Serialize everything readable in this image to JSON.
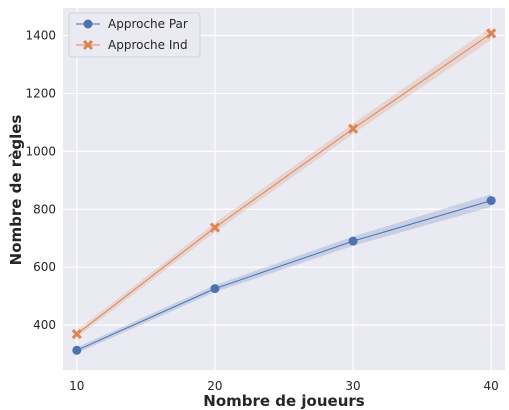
{
  "chart_data": {
    "type": "line",
    "title": "",
    "xlabel": "Nombre de joueurs",
    "ylabel": "Nombre de règles",
    "x": [
      10,
      20,
      30,
      40
    ],
    "x_ticks": [
      10,
      20,
      30,
      40
    ],
    "y_ticks": [
      400,
      600,
      800,
      1000,
      1200,
      1400
    ],
    "xlim": [
      9,
      41
    ],
    "ylim": [
      245,
      1495
    ],
    "grid": true,
    "legend_position": "top-left",
    "series": [
      {
        "name": "Approche Par",
        "color": "#4c72b0",
        "marker": "circle",
        "values": [
          313,
          526,
          690,
          830
        ],
        "ci_low": [
          303,
          514,
          674,
          808
        ],
        "ci_high": [
          323,
          538,
          706,
          852
        ]
      },
      {
        "name": "Approche Ind",
        "color": "#dd8452",
        "marker": "x",
        "values": [
          369,
          737,
          1078,
          1407
        ],
        "ci_low": [
          357,
          721,
          1060,
          1385
        ],
        "ci_high": [
          381,
          753,
          1096,
          1429
        ]
      }
    ]
  }
}
